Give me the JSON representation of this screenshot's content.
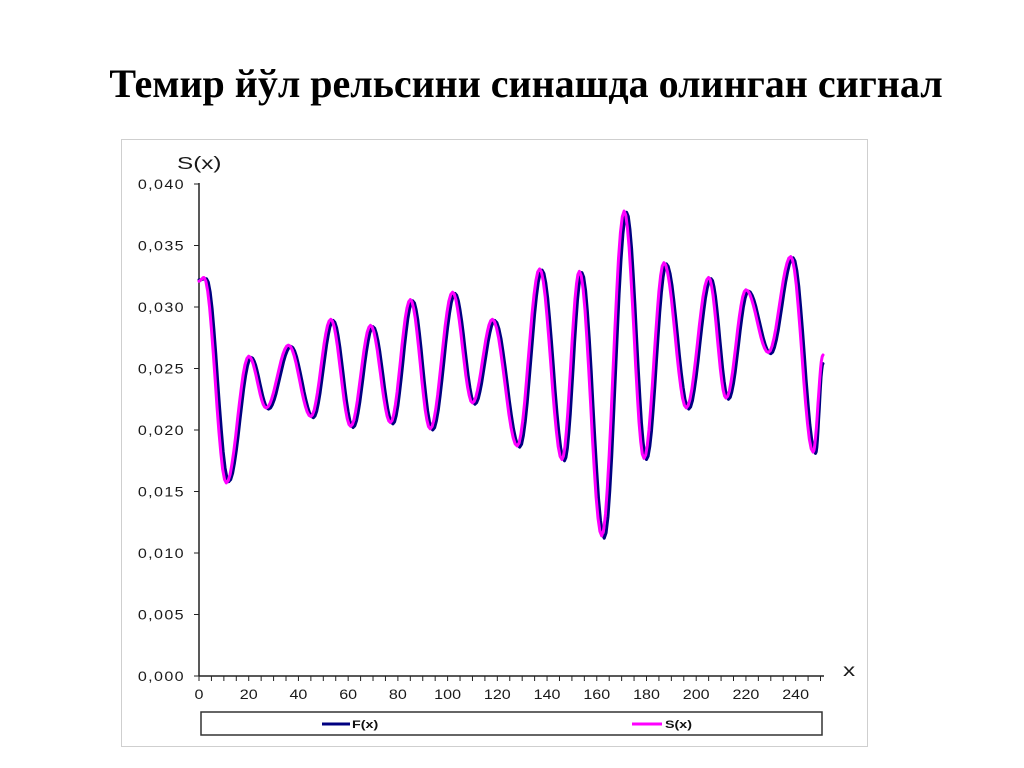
{
  "chart_data": {
    "type": "line",
    "title": "Темир йўл рельсини синашда олинган сигнал",
    "xlabel": "x",
    "ylabel": "S(x)",
    "xlim": [
      0,
      251
    ],
    "ylim": [
      0,
      0.04
    ],
    "x_ticks": [
      0,
      20,
      40,
      60,
      80,
      100,
      120,
      140,
      160,
      180,
      200,
      220,
      240
    ],
    "y_ticks": [
      0,
      0.005,
      0.01,
      0.015,
      0.02,
      0.025,
      0.03,
      0.035,
      0.04
    ],
    "y_tick_labels": [
      "0,000",
      "0,005",
      "0,010",
      "0,015",
      "0,020",
      "0,025",
      "0,030",
      "0,035",
      "0,040"
    ],
    "grid": false,
    "legend": "bottom",
    "series": [
      {
        "name": "F(x)",
        "color": "#000080",
        "x": [
          0,
          3,
          12,
          21,
          28,
          37,
          46,
          54,
          62,
          70,
          78,
          86,
          94,
          103,
          111,
          119,
          129,
          138,
          147,
          154,
          163,
          172,
          180,
          188,
          197,
          206,
          213,
          221,
          230,
          239,
          248,
          251
        ],
        "y": [
          0.0322,
          0.0323,
          0.0158,
          0.0259,
          0.0217,
          0.0268,
          0.021,
          0.0289,
          0.0202,
          0.0284,
          0.0205,
          0.0305,
          0.02,
          0.0311,
          0.0221,
          0.0289,
          0.0186,
          0.033,
          0.0175,
          0.0328,
          0.0112,
          0.0377,
          0.0176,
          0.0335,
          0.0217,
          0.0323,
          0.0225,
          0.0313,
          0.0262,
          0.034,
          0.0181,
          0.0254
        ]
      },
      {
        "name": "S(x)",
        "color": "#ff00ff",
        "x": [
          0,
          2,
          11,
          20,
          27,
          36,
          45,
          53,
          61,
          69,
          77,
          85,
          93,
          102,
          110,
          118,
          128,
          137,
          146,
          153,
          162,
          171,
          179,
          187,
          196,
          205,
          212,
          220,
          229,
          238,
          247,
          251
        ],
        "y": [
          0.0321,
          0.0324,
          0.0157,
          0.026,
          0.0218,
          0.0269,
          0.0211,
          0.029,
          0.0203,
          0.0285,
          0.0206,
          0.0306,
          0.0201,
          0.0312,
          0.0222,
          0.029,
          0.0187,
          0.0331,
          0.0176,
          0.0329,
          0.0114,
          0.0378,
          0.0177,
          0.0336,
          0.0218,
          0.0324,
          0.0226,
          0.0314,
          0.0263,
          0.0341,
          0.0182,
          0.0261
        ]
      }
    ]
  }
}
